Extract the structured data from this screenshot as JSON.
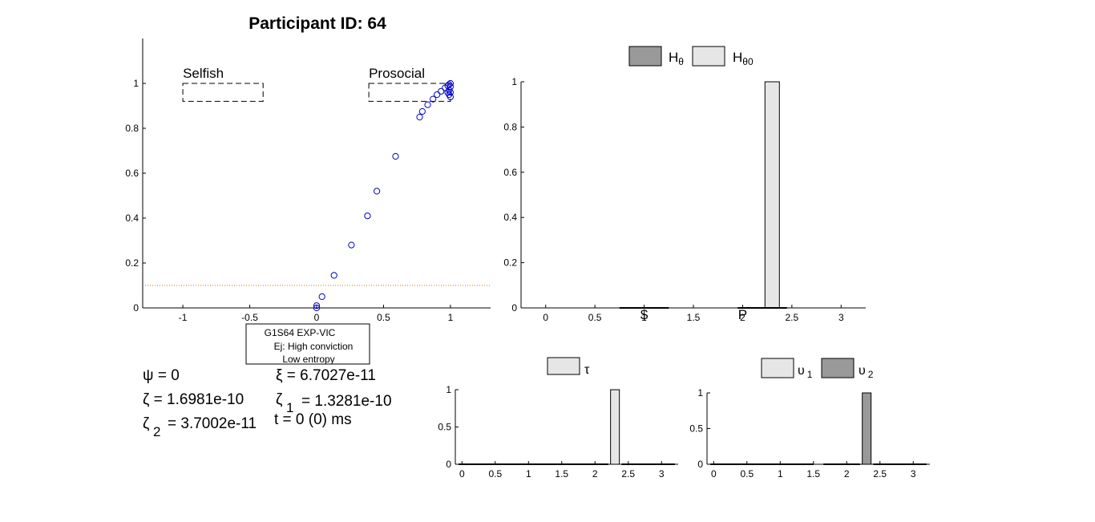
{
  "figure_title": "Participant ID: 64",
  "annotation_box": {
    "lines": [
      "G1S64 EXP-VIC",
      "Ej: High conviction",
      "Low entropy"
    ]
  },
  "parameters": {
    "psi": "ψ = 0",
    "xi": "ξ = 6.7027e-11",
    "zeta": "ζ = 1.6981e-10",
    "zeta1_sym": "ζ",
    "zeta1_sub": "1",
    "zeta1_val": "= 1.3281e-10",
    "zeta2_sym": "ζ",
    "zeta2_sub": "2",
    "zeta2_val": "= 3.7002e-11",
    "time": "t = 0 (0) ms"
  },
  "colors": {
    "points": "#0000cc",
    "threshold": "#cc7700",
    "bar_dark": "#999999",
    "bar_light": "#e6e6e6"
  },
  "chart_data": [
    {
      "type": "scatter",
      "title": "",
      "xlim": [
        -1.3,
        1.3
      ],
      "ylim": [
        0,
        1.2
      ],
      "xticks": [
        "-1",
        "-0.5",
        "0",
        "0.5",
        "1"
      ],
      "yticks": [
        "0",
        "0.2",
        "0.4",
        "0.6",
        "0.8",
        "1"
      ],
      "points": [
        {
          "x": 0.0,
          "y": 0.0
        },
        {
          "x": 0.0,
          "y": 0.01
        },
        {
          "x": 0.04,
          "y": 0.05
        },
        {
          "x": 0.13,
          "y": 0.145
        },
        {
          "x": 0.26,
          "y": 0.28
        },
        {
          "x": 0.38,
          "y": 0.41
        },
        {
          "x": 0.45,
          "y": 0.52
        },
        {
          "x": 0.59,
          "y": 0.675
        },
        {
          "x": 0.77,
          "y": 0.85
        },
        {
          "x": 0.79,
          "y": 0.875
        },
        {
          "x": 0.83,
          "y": 0.905
        },
        {
          "x": 0.87,
          "y": 0.93
        },
        {
          "x": 0.9,
          "y": 0.95
        },
        {
          "x": 0.93,
          "y": 0.965
        },
        {
          "x": 0.96,
          "y": 0.98
        },
        {
          "x": 0.98,
          "y": 0.99
        },
        {
          "x": 0.99,
          "y": 0.995
        },
        {
          "x": 1.0,
          "y": 0.985
        },
        {
          "x": 0.99,
          "y": 0.97
        },
        {
          "x": 1.0,
          "y": 0.96
        },
        {
          "x": 0.99,
          "y": 0.95
        },
        {
          "x": 1.0,
          "y": 0.94
        },
        {
          "x": 0.98,
          "y": 0.96
        },
        {
          "x": 1.0,
          "y": 1.0
        }
      ],
      "threshold_y": 0.1,
      "regions": [
        {
          "label": "Selfish",
          "x": [
            -1.0,
            -0.4
          ],
          "y": [
            0.92,
            1.0
          ]
        },
        {
          "label": "Prosocial",
          "x": [
            0.39,
            1.0
          ],
          "y": [
            0.92,
            1.0
          ]
        }
      ]
    },
    {
      "type": "bar",
      "title": "",
      "xlim": [
        -0.25,
        3.25
      ],
      "ylim": [
        0,
        1
      ],
      "xticks": [
        "0",
        "0.5",
        "1",
        "1.5",
        "2",
        "2.5",
        "3"
      ],
      "yticks": [
        "0",
        "0.2",
        "0.4",
        "0.6",
        "0.8",
        "1"
      ],
      "category_labels": [
        {
          "label": "$",
          "x": 1.0
        },
        {
          "label": "P",
          "x": 2.0
        }
      ],
      "legend": [
        "Hθ",
        "Hθ0"
      ],
      "series": [
        {
          "name": "Hθ",
          "bars": []
        },
        {
          "name": "Hθ0",
          "bars": [
            {
              "x": 2.3,
              "value": 1.0
            }
          ]
        }
      ]
    },
    {
      "type": "bar",
      "title": "",
      "xlim": [
        -0.1,
        3.25
      ],
      "ylim": [
        0,
        1
      ],
      "xticks": [
        "0",
        "0.5",
        "1",
        "1.5",
        "2",
        "2.5",
        "3"
      ],
      "yticks": [
        "0",
        "0.5",
        "1"
      ],
      "legend": [
        "τ"
      ],
      "series": [
        {
          "name": "τ",
          "bars": [
            {
              "x": 2.3,
              "value": 1.0
            }
          ]
        }
      ]
    },
    {
      "type": "bar",
      "title": "",
      "xlim": [
        -0.1,
        3.25
      ],
      "ylim": [
        0,
        1
      ],
      "xticks": [
        "0",
        "0.5",
        "1",
        "1.5",
        "2",
        "2.5",
        "3"
      ],
      "yticks": [
        "0",
        "0.5",
        "1"
      ],
      "legend": [
        "υ1",
        "υ2"
      ],
      "series": [
        {
          "name": "υ1",
          "bars": []
        },
        {
          "name": "υ2",
          "bars": [
            {
              "x": 2.3,
              "value": 1.0
            }
          ]
        }
      ]
    }
  ]
}
